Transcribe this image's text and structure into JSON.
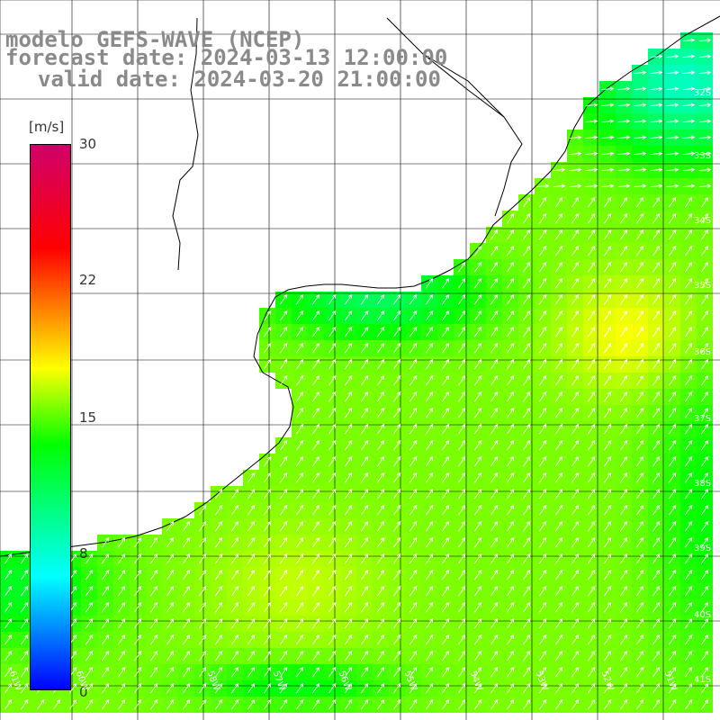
{
  "title": {
    "line1": "modelo GEFS-WAVE (NCEP)",
    "line2": "forecast date: 2024-03-13 12:00:00",
    "line3": "valid date: 2024-03-20 21:00:00"
  },
  "colorbar": {
    "unit": "[m/s]",
    "ticks": [
      "30",
      "22",
      "15",
      "8",
      "0"
    ],
    "colors": [
      "#0000ff",
      "#00ffff",
      "#00ff00",
      "#ffff00",
      "#ff7f00",
      "#ff0000",
      "#d0006a"
    ]
  },
  "map": {
    "lat_labels": [
      "32S",
      "33S",
      "34S",
      "35S",
      "36S",
      "37S",
      "38S",
      "39S",
      "40S",
      "41S"
    ],
    "lon_labels": [
      "61W",
      "60W",
      "59W",
      "58W",
      "57W",
      "56W",
      "55W",
      "54W",
      "53W",
      "52W",
      "51W"
    ],
    "colors": {
      "land": "#ffffff",
      "coastline": "#000000",
      "grid": "#000000",
      "arrows": "#ffffff"
    }
  }
}
